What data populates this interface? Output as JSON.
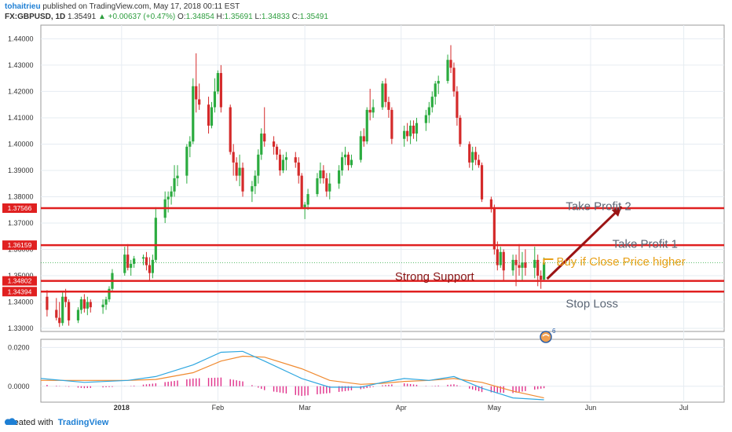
{
  "header": {
    "author": "tohaitrieu",
    "published_text": "published on TradingView.com, May 17, 2018 00:11 EST",
    "symbol": "FX:GBPUSD, 1D",
    "last": "1.35491",
    "change": "+0.00637 (+0.47%)",
    "open": "1.34854",
    "high": "1.35691",
    "low": "1.34833",
    "close": "1.35491",
    "labels": {
      "o": "O:",
      "h": "H:",
      "l": "L:",
      "c": "C:"
    }
  },
  "footer": {
    "created_with": "Created with",
    "brand": "TradingView"
  },
  "colors": {
    "up": "#2bab3f",
    "down": "#d42a2a",
    "level": "#e02020",
    "macd": "#2fa7e0",
    "signal": "#f08a30",
    "hist": "#e0308a",
    "arrow": "#9b1414",
    "buy": "#e8a018"
  },
  "chart_data": {
    "type": "candlestick",
    "y_ticks": [
      "1.44000",
      "1.43000",
      "1.42000",
      "1.41000",
      "1.40000",
      "1.39000",
      "1.38000",
      "1.37000",
      "1.36000",
      "1.35000",
      "1.34000",
      "1.33000"
    ],
    "ylim": [
      1.3288,
      1.4452
    ],
    "x_ticks": [
      "2018",
      "Feb",
      "Mar",
      "Apr",
      "May",
      "Jun",
      "Jul"
    ],
    "x_tick_dates": [
      "2018-01-01",
      "2018-02-01",
      "2018-03-01",
      "2018-04-01",
      "2018-05-01",
      "2018-06-01",
      "2018-07-01"
    ],
    "xlim": [
      "2017-12-06",
      "2018-07-14"
    ],
    "levels": [
      {
        "label": "1.37566",
        "value": 1.37566
      },
      {
        "label": "1.36159",
        "value": 1.36159
      },
      {
        "label": "1.34802",
        "value": 1.34802
      },
      {
        "label": "1.34394",
        "value": 1.34394
      }
    ],
    "dotted_level": 1.35491,
    "annotations": [
      {
        "text": "Take Profit 2",
        "date": "2018-05-24",
        "value": 1.37635
      },
      {
        "text": "Take Profit 1",
        "date": "2018-06-08",
        "value": 1.36205
      },
      {
        "text": "Buy if Close Price higher",
        "date": "2018-05-21",
        "value": 1.35535
      },
      {
        "text": "Strong Support",
        "date": "2018-03-30",
        "value": 1.34975
      },
      {
        "text": "Stop Loss",
        "date": "2018-05-24",
        "value": 1.3394
      }
    ],
    "trade_arrow": {
      "from": [
        "2018-05-18",
        1.3488
      ],
      "to": [
        "2018-06-11",
        1.3762
      ]
    },
    "candles": [
      {
        "d": "2017-12-08",
        "o": 1.342,
        "h": 1.3445,
        "l": 1.3345,
        "c": 1.337
      },
      {
        "d": "2017-12-11",
        "o": 1.337,
        "h": 1.3415,
        "l": 1.333,
        "c": 1.334
      },
      {
        "d": "2017-12-12",
        "o": 1.334,
        "h": 1.34,
        "l": 1.3305,
        "c": 1.332
      },
      {
        "d": "2017-12-13",
        "o": 1.332,
        "h": 1.344,
        "l": 1.331,
        "c": 1.342
      },
      {
        "d": "2017-12-14",
        "o": 1.342,
        "h": 1.345,
        "l": 1.338,
        "c": 1.34
      },
      {
        "d": "2017-12-15",
        "o": 1.34,
        "h": 1.341,
        "l": 1.331,
        "c": 1.333
      },
      {
        "d": "2017-12-18",
        "o": 1.333,
        "h": 1.338,
        "l": 1.332,
        "c": 1.337
      },
      {
        "d": "2017-12-19",
        "o": 1.337,
        "h": 1.342,
        "l": 1.3355,
        "c": 1.341
      },
      {
        "d": "2017-12-20",
        "o": 1.341,
        "h": 1.343,
        "l": 1.336,
        "c": 1.3375
      },
      {
        "d": "2017-12-21",
        "o": 1.3375,
        "h": 1.342,
        "l": 1.335,
        "c": 1.34
      },
      {
        "d": "2017-12-22",
        "o": 1.34,
        "h": 1.341,
        "l": 1.336,
        "c": 1.338
      },
      {
        "d": "2017-12-26",
        "o": 1.338,
        "h": 1.341,
        "l": 1.3355,
        "c": 1.339
      },
      {
        "d": "2017-12-27",
        "o": 1.339,
        "h": 1.342,
        "l": 1.337,
        "c": 1.341
      },
      {
        "d": "2017-12-28",
        "o": 1.341,
        "h": 1.346,
        "l": 1.34,
        "c": 1.345
      },
      {
        "d": "2017-12-29",
        "o": 1.345,
        "h": 1.3525,
        "l": 1.344,
        "c": 1.351
      },
      {
        "d": "2018-01-02",
        "o": 1.351,
        "h": 1.361,
        "l": 1.35,
        "c": 1.358
      },
      {
        "d": "2018-01-03",
        "o": 1.358,
        "h": 1.362,
        "l": 1.352,
        "c": 1.353
      },
      {
        "d": "2018-01-04",
        "o": 1.353,
        "h": 1.356,
        "l": 1.35,
        "c": 1.3545
      },
      {
        "d": "2018-01-05",
        "o": 1.3545,
        "h": 1.3575,
        "l": 1.353,
        "c": 1.3565
      },
      {
        "d": "2018-01-08",
        "o": 1.3565,
        "h": 1.358,
        "l": 1.354,
        "c": 1.357
      },
      {
        "d": "2018-01-09",
        "o": 1.357,
        "h": 1.359,
        "l": 1.352,
        "c": 1.354
      },
      {
        "d": "2018-01-10",
        "o": 1.354,
        "h": 1.357,
        "l": 1.348,
        "c": 1.351
      },
      {
        "d": "2018-01-11",
        "o": 1.351,
        "h": 1.358,
        "l": 1.349,
        "c": 1.356
      },
      {
        "d": "2018-01-12",
        "o": 1.356,
        "h": 1.376,
        "l": 1.355,
        "c": 1.372
      },
      {
        "d": "2018-01-15",
        "o": 1.372,
        "h": 1.382,
        "l": 1.37,
        "c": 1.379
      },
      {
        "d": "2018-01-16",
        "o": 1.379,
        "h": 1.382,
        "l": 1.374,
        "c": 1.38
      },
      {
        "d": "2018-01-17",
        "o": 1.38,
        "h": 1.384,
        "l": 1.377,
        "c": 1.382
      },
      {
        "d": "2018-01-18",
        "o": 1.382,
        "h": 1.392,
        "l": 1.38,
        "c": 1.387
      },
      {
        "d": "2018-01-19",
        "o": 1.387,
        "h": 1.392,
        "l": 1.384,
        "c": 1.388
      },
      {
        "d": "2018-01-22",
        "o": 1.388,
        "h": 1.4,
        "l": 1.385,
        "c": 1.399
      },
      {
        "d": "2018-01-23",
        "o": 1.399,
        "h": 1.403,
        "l": 1.395,
        "c": 1.401
      },
      {
        "d": "2018-01-24",
        "o": 1.401,
        "h": 1.425,
        "l": 1.4,
        "c": 1.422
      },
      {
        "d": "2018-01-25",
        "o": 1.422,
        "h": 1.4345,
        "l": 1.412,
        "c": 1.417
      },
      {
        "d": "2018-01-26",
        "o": 1.417,
        "h": 1.423,
        "l": 1.413,
        "c": 1.415
      },
      {
        "d": "2018-01-29",
        "o": 1.415,
        "h": 1.418,
        "l": 1.404,
        "c": 1.407
      },
      {
        "d": "2018-01-30",
        "o": 1.407,
        "h": 1.416,
        "l": 1.406,
        "c": 1.414
      },
      {
        "d": "2018-01-31",
        "o": 1.414,
        "h": 1.425,
        "l": 1.412,
        "c": 1.42
      },
      {
        "d": "2018-02-01",
        "o": 1.42,
        "h": 1.428,
        "l": 1.419,
        "c": 1.427
      },
      {
        "d": "2018-02-02",
        "o": 1.427,
        "h": 1.43,
        "l": 1.412,
        "c": 1.414
      },
      {
        "d": "2018-02-05",
        "o": 1.414,
        "h": 1.415,
        "l": 1.396,
        "c": 1.397
      },
      {
        "d": "2018-02-06",
        "o": 1.397,
        "h": 1.4,
        "l": 1.388,
        "c": 1.393
      },
      {
        "d": "2018-02-07",
        "o": 1.393,
        "h": 1.395,
        "l": 1.386,
        "c": 1.388
      },
      {
        "d": "2018-02-08",
        "o": 1.388,
        "h": 1.396,
        "l": 1.384,
        "c": 1.391
      },
      {
        "d": "2018-02-09",
        "o": 1.391,
        "h": 1.393,
        "l": 1.38,
        "c": 1.382
      },
      {
        "d": "2018-02-12",
        "o": 1.382,
        "h": 1.386,
        "l": 1.378,
        "c": 1.384
      },
      {
        "d": "2018-02-13",
        "o": 1.384,
        "h": 1.39,
        "l": 1.381,
        "c": 1.388
      },
      {
        "d": "2018-02-14",
        "o": 1.388,
        "h": 1.398,
        "l": 1.385,
        "c": 1.396
      },
      {
        "d": "2018-02-15",
        "o": 1.396,
        "h": 1.406,
        "l": 1.394,
        "c": 1.404
      },
      {
        "d": "2018-02-16",
        "o": 1.404,
        "h": 1.414,
        "l": 1.399,
        "c": 1.401
      },
      {
        "d": "2018-02-19",
        "o": 1.401,
        "h": 1.403,
        "l": 1.396,
        "c": 1.399
      },
      {
        "d": "2018-02-20",
        "o": 1.399,
        "h": 1.4,
        "l": 1.394,
        "c": 1.396
      },
      {
        "d": "2018-02-21",
        "o": 1.396,
        "h": 1.398,
        "l": 1.388,
        "c": 1.39
      },
      {
        "d": "2018-02-22",
        "o": 1.39,
        "h": 1.396,
        "l": 1.389,
        "c": 1.394
      },
      {
        "d": "2018-02-23",
        "o": 1.394,
        "h": 1.397,
        "l": 1.39,
        "c": 1.395
      },
      {
        "d": "2018-02-26",
        "o": 1.395,
        "h": 1.397,
        "l": 1.391,
        "c": 1.393
      },
      {
        "d": "2018-02-27",
        "o": 1.393,
        "h": 1.395,
        "l": 1.385,
        "c": 1.388
      },
      {
        "d": "2018-02-28",
        "o": 1.388,
        "h": 1.389,
        "l": 1.376,
        "c": 1.376
      },
      {
        "d": "2018-03-01",
        "o": 1.376,
        "h": 1.378,
        "l": 1.3715,
        "c": 1.377
      },
      {
        "d": "2018-03-02",
        "o": 1.377,
        "h": 1.383,
        "l": 1.375,
        "c": 1.381
      },
      {
        "d": "2018-03-05",
        "o": 1.381,
        "h": 1.389,
        "l": 1.38,
        "c": 1.387
      },
      {
        "d": "2018-03-06",
        "o": 1.387,
        "h": 1.393,
        "l": 1.385,
        "c": 1.39
      },
      {
        "d": "2018-03-07",
        "o": 1.39,
        "h": 1.392,
        "l": 1.385,
        "c": 1.387
      },
      {
        "d": "2018-03-08",
        "o": 1.387,
        "h": 1.389,
        "l": 1.38,
        "c": 1.382
      },
      {
        "d": "2018-03-09",
        "o": 1.382,
        "h": 1.389,
        "l": 1.379,
        "c": 1.385
      },
      {
        "d": "2018-03-12",
        "o": 1.385,
        "h": 1.392,
        "l": 1.383,
        "c": 1.39
      },
      {
        "d": "2018-03-13",
        "o": 1.39,
        "h": 1.397,
        "l": 1.388,
        "c": 1.395
      },
      {
        "d": "2018-03-14",
        "o": 1.395,
        "h": 1.399,
        "l": 1.392,
        "c": 1.396
      },
      {
        "d": "2018-03-15",
        "o": 1.396,
        "h": 1.397,
        "l": 1.39,
        "c": 1.392
      },
      {
        "d": "2018-03-16",
        "o": 1.392,
        "h": 1.396,
        "l": 1.391,
        "c": 1.394
      },
      {
        "d": "2018-03-19",
        "o": 1.394,
        "h": 1.405,
        "l": 1.393,
        "c": 1.403
      },
      {
        "d": "2018-03-20",
        "o": 1.403,
        "h": 1.406,
        "l": 1.399,
        "c": 1.401
      },
      {
        "d": "2018-03-21",
        "o": 1.401,
        "h": 1.414,
        "l": 1.4,
        "c": 1.413
      },
      {
        "d": "2018-03-22",
        "o": 1.413,
        "h": 1.421,
        "l": 1.409,
        "c": 1.412
      },
      {
        "d": "2018-03-23",
        "o": 1.412,
        "h": 1.417,
        "l": 1.41,
        "c": 1.414
      },
      {
        "d": "2018-03-26",
        "o": 1.414,
        "h": 1.424,
        "l": 1.413,
        "c": 1.423
      },
      {
        "d": "2018-03-27",
        "o": 1.423,
        "h": 1.425,
        "l": 1.414,
        "c": 1.416
      },
      {
        "d": "2018-03-28",
        "o": 1.416,
        "h": 1.418,
        "l": 1.41,
        "c": 1.413
      },
      {
        "d": "2018-03-29",
        "o": 1.413,
        "h": 1.414,
        "l": 1.4,
        "c": 1.402
      },
      {
        "d": "2018-04-02",
        "o": 1.402,
        "h": 1.407,
        "l": 1.399,
        "c": 1.405
      },
      {
        "d": "2018-04-03",
        "o": 1.405,
        "h": 1.408,
        "l": 1.401,
        "c": 1.403
      },
      {
        "d": "2018-04-04",
        "o": 1.403,
        "h": 1.409,
        "l": 1.4,
        "c": 1.407
      },
      {
        "d": "2018-04-05",
        "o": 1.407,
        "h": 1.409,
        "l": 1.402,
        "c": 1.404
      },
      {
        "d": "2018-04-06",
        "o": 1.404,
        "h": 1.41,
        "l": 1.401,
        "c": 1.408
      },
      {
        "d": "2018-04-09",
        "o": 1.408,
        "h": 1.413,
        "l": 1.405,
        "c": 1.411
      },
      {
        "d": "2018-04-10",
        "o": 1.411,
        "h": 1.416,
        "l": 1.408,
        "c": 1.414
      },
      {
        "d": "2018-04-11",
        "o": 1.414,
        "h": 1.42,
        "l": 1.412,
        "c": 1.418
      },
      {
        "d": "2018-04-12",
        "o": 1.418,
        "h": 1.424,
        "l": 1.415,
        "c": 1.423
      },
      {
        "d": "2018-04-13",
        "o": 1.423,
        "h": 1.426,
        "l": 1.419,
        "c": 1.424
      },
      {
        "d": "2018-04-16",
        "o": 1.424,
        "h": 1.434,
        "l": 1.423,
        "c": 1.432
      },
      {
        "d": "2018-04-17",
        "o": 1.432,
        "h": 1.4376,
        "l": 1.427,
        "c": 1.429
      },
      {
        "d": "2018-04-18",
        "o": 1.429,
        "h": 1.431,
        "l": 1.418,
        "c": 1.42
      },
      {
        "d": "2018-04-19",
        "o": 1.42,
        "h": 1.422,
        "l": 1.407,
        "c": 1.41
      },
      {
        "d": "2018-04-20",
        "o": 1.41,
        "h": 1.411,
        "l": 1.399,
        "c": 1.4
      },
      {
        "d": "2018-04-23",
        "o": 1.4,
        "h": 1.401,
        "l": 1.391,
        "c": 1.393
      },
      {
        "d": "2018-04-24",
        "o": 1.393,
        "h": 1.399,
        "l": 1.39,
        "c": 1.397
      },
      {
        "d": "2018-04-25",
        "o": 1.397,
        "h": 1.399,
        "l": 1.392,
        "c": 1.394
      },
      {
        "d": "2018-04-26",
        "o": 1.394,
        "h": 1.396,
        "l": 1.391,
        "c": 1.392
      },
      {
        "d": "2018-04-27",
        "o": 1.392,
        "h": 1.393,
        "l": 1.378,
        "c": 1.379
      },
      {
        "d": "2018-04-30",
        "o": 1.379,
        "h": 1.38,
        "l": 1.374,
        "c": 1.376
      },
      {
        "d": "2018-05-01",
        "o": 1.376,
        "h": 1.377,
        "l": 1.358,
        "c": 1.36
      },
      {
        "d": "2018-05-02",
        "o": 1.36,
        "h": 1.363,
        "l": 1.352,
        "c": 1.354
      },
      {
        "d": "2018-05-03",
        "o": 1.354,
        "h": 1.361,
        "l": 1.353,
        "c": 1.359
      },
      {
        "d": "2018-05-04",
        "o": 1.359,
        "h": 1.36,
        "l": 1.348,
        "c": 1.352
      },
      {
        "d": "2018-05-07",
        "o": 1.352,
        "h": 1.358,
        "l": 1.35,
        "c": 1.356
      },
      {
        "d": "2018-05-08",
        "o": 1.356,
        "h": 1.358,
        "l": 1.346,
        "c": 1.354
      },
      {
        "d": "2018-05-09",
        "o": 1.354,
        "h": 1.362,
        "l": 1.35,
        "c": 1.353
      },
      {
        "d": "2018-05-10",
        "o": 1.353,
        "h": 1.359,
        "l": 1.348,
        "c": 1.355
      },
      {
        "d": "2018-05-11",
        "o": 1.355,
        "h": 1.36,
        "l": 1.35,
        "c": 1.353
      },
      {
        "d": "2018-05-14",
        "o": 1.353,
        "h": 1.361,
        "l": 1.349,
        "c": 1.356
      },
      {
        "d": "2018-05-15",
        "o": 1.356,
        "h": 1.358,
        "l": 1.346,
        "c": 1.35
      },
      {
        "d": "2018-05-16",
        "o": 1.35,
        "h": 1.352,
        "l": 1.345,
        "c": 1.3485
      },
      {
        "d": "2018-05-17",
        "o": 1.34854,
        "h": 1.35691,
        "l": 1.34833,
        "c": 1.35491
      }
    ],
    "indicator": {
      "y_ticks": [
        "0.0200",
        "0.0000"
      ],
      "ylim": [
        -0.0082,
        0.0242
      ],
      "macd": [
        {
          "d": "2017-12-06",
          "v": 0.004
        },
        {
          "d": "2017-12-20",
          "v": 0.002
        },
        {
          "d": "2018-01-03",
          "v": 0.003
        },
        {
          "d": "2018-01-12",
          "v": 0.005
        },
        {
          "d": "2018-01-24",
          "v": 0.011
        },
        {
          "d": "2018-02-02",
          "v": 0.0175
        },
        {
          "d": "2018-02-09",
          "v": 0.018
        },
        {
          "d": "2018-02-16",
          "v": 0.013
        },
        {
          "d": "2018-02-28",
          "v": 0.004
        },
        {
          "d": "2018-03-09",
          "v": -0.0005
        },
        {
          "d": "2018-03-19",
          "v": -0.0005
        },
        {
          "d": "2018-03-26",
          "v": 0.002
        },
        {
          "d": "2018-04-02",
          "v": 0.004
        },
        {
          "d": "2018-04-10",
          "v": 0.003
        },
        {
          "d": "2018-04-18",
          "v": 0.005
        },
        {
          "d": "2018-04-27",
          "v": -0.001
        },
        {
          "d": "2018-05-07",
          "v": -0.006
        },
        {
          "d": "2018-05-17",
          "v": -0.007
        }
      ],
      "signal": [
        {
          "d": "2017-12-06",
          "v": 0.003
        },
        {
          "d": "2017-12-20",
          "v": 0.003
        },
        {
          "d": "2018-01-03",
          "v": 0.003
        },
        {
          "d": "2018-01-12",
          "v": 0.0035
        },
        {
          "d": "2018-01-24",
          "v": 0.007
        },
        {
          "d": "2018-02-02",
          "v": 0.013
        },
        {
          "d": "2018-02-09",
          "v": 0.0155
        },
        {
          "d": "2018-02-16",
          "v": 0.015
        },
        {
          "d": "2018-02-28",
          "v": 0.009
        },
        {
          "d": "2018-03-09",
          "v": 0.003
        },
        {
          "d": "2018-03-19",
          "v": 0.001
        },
        {
          "d": "2018-03-26",
          "v": 0.0015
        },
        {
          "d": "2018-04-02",
          "v": 0.0025
        },
        {
          "d": "2018-04-10",
          "v": 0.003
        },
        {
          "d": "2018-04-18",
          "v": 0.004
        },
        {
          "d": "2018-04-27",
          "v": 0.002
        },
        {
          "d": "2018-05-07",
          "v": -0.0025
        },
        {
          "d": "2018-05-17",
          "v": -0.006
        }
      ]
    }
  }
}
